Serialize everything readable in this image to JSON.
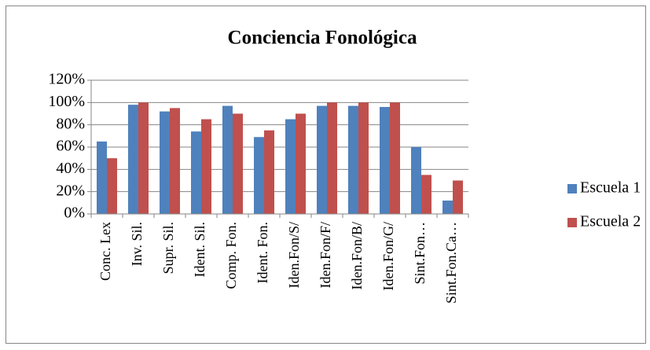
{
  "chart_data": {
    "type": "bar",
    "title": "Conciencia Fonológica",
    "categories": [
      "Conc. Lex",
      "Inv. Sil.",
      "Supr. Sil.",
      "Ident. Sil.",
      "Comp. Fon.",
      "Ident. Fon.",
      "Iden.Fon/S/",
      "Iden.Fon/F/",
      "Iden.Fon/B/",
      "Iden.Fon/G/",
      "Sint.Fon…",
      "Sint.Fon.Ca…"
    ],
    "series": [
      {
        "name": "Escuela 1",
        "color": "#4f81bd",
        "values": [
          65,
          98,
          92,
          74,
          97,
          69,
          85,
          97,
          97,
          96,
          60,
          12
        ]
      },
      {
        "name": "Escuela 2",
        "color": "#c0504d",
        "values": [
          50,
          100,
          95,
          85,
          90,
          75,
          90,
          100,
          100,
          100,
          35,
          30
        ]
      }
    ],
    "ylim": [
      0,
      120
    ],
    "yticks": [
      {
        "value": 0,
        "label": "0%"
      },
      {
        "value": 20,
        "label": "20%"
      },
      {
        "value": 40,
        "label": "40%"
      },
      {
        "value": 60,
        "label": "60%"
      },
      {
        "value": 80,
        "label": "80%"
      },
      {
        "value": 100,
        "label": "100%"
      },
      {
        "value": 120,
        "label": "120%"
      }
    ],
    "grid": true,
    "legend": "right"
  }
}
